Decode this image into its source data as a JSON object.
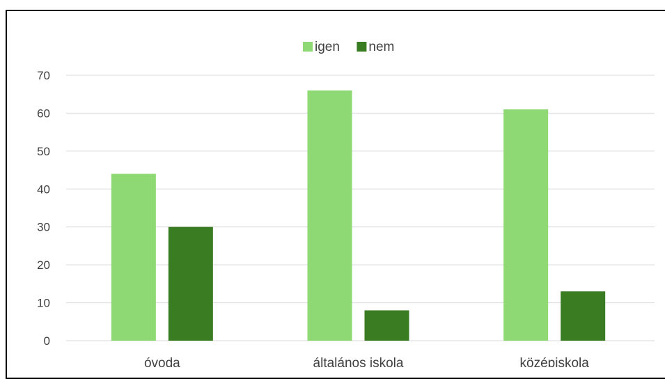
{
  "chart_data": {
    "type": "bar",
    "categories": [
      "óvoda",
      "általános iskola",
      "középiskola"
    ],
    "series": [
      {
        "name": "igen",
        "values": [
          44,
          66,
          61
        ],
        "color": "#8ED973"
      },
      {
        "name": "nem",
        "values": [
          30,
          8,
          13
        ],
        "color": "#3A7C22"
      }
    ],
    "ylim": [
      0,
      70
    ],
    "yticks": [
      0,
      10,
      20,
      30,
      40,
      50,
      60,
      70
    ],
    "grid": true,
    "legend": "top",
    "gridColor": "#D9D9D9"
  }
}
